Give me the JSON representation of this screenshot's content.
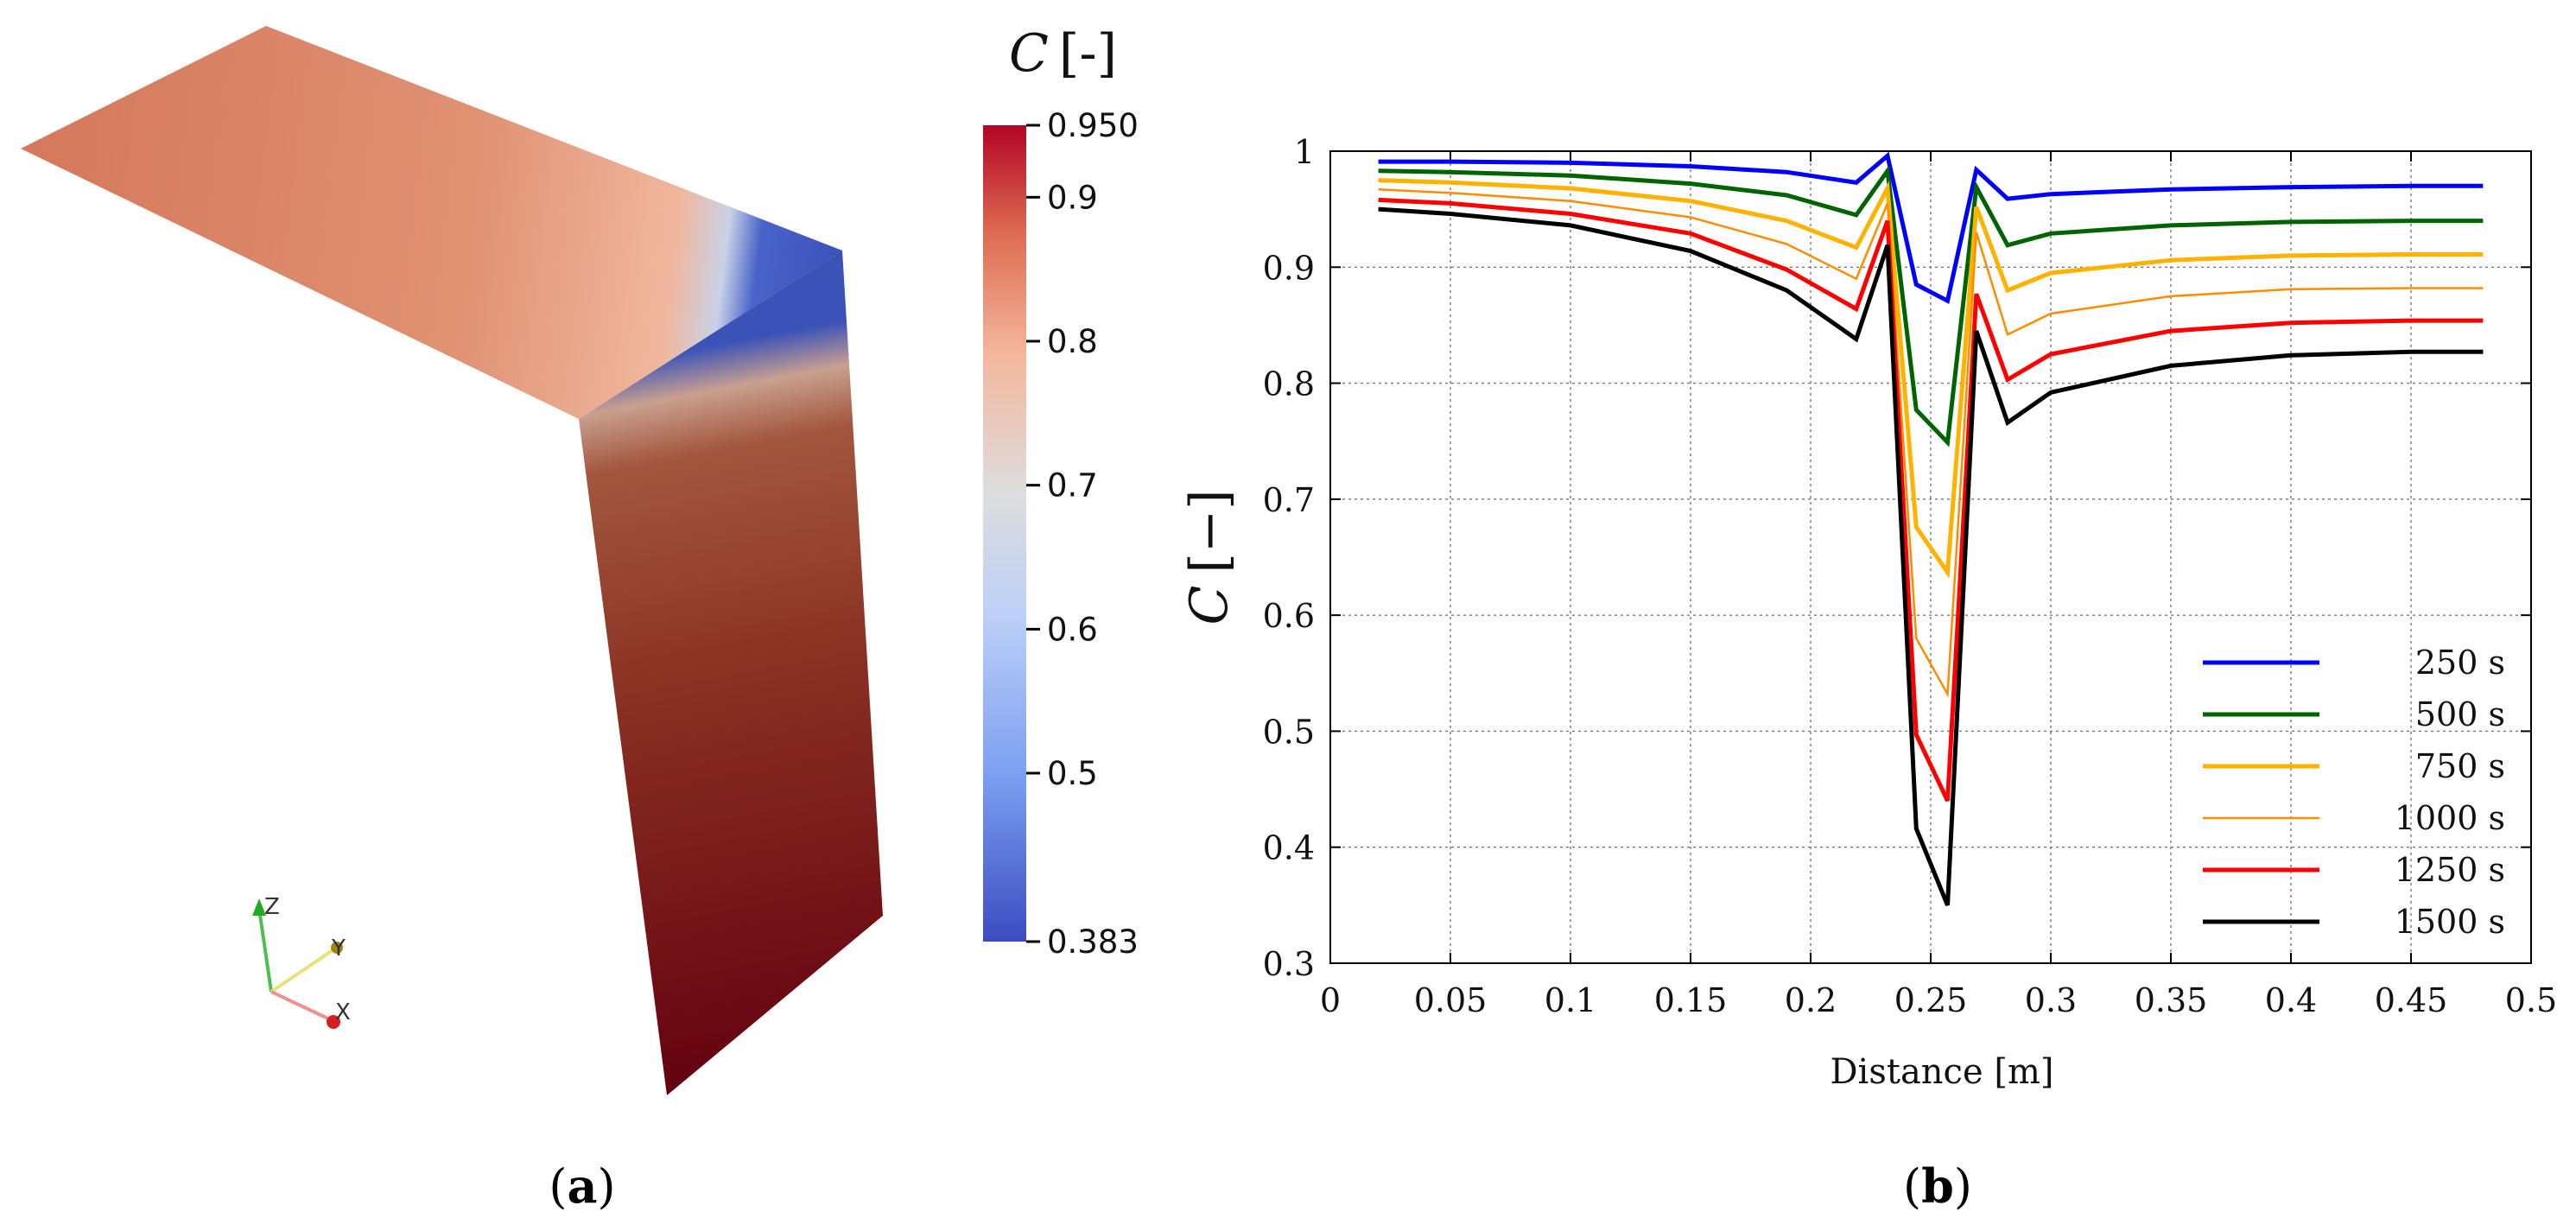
{
  "panel_a": {
    "label": "a",
    "colorbar": {
      "title": "C [-]",
      "title_var": "C",
      "title_unit": "[-]",
      "min": 0.383,
      "max": 0.95,
      "ticks": [
        "0.950",
        "0.9",
        "0.8",
        "0.7",
        "0.6",
        "0.5",
        "0.383"
      ],
      "tick_values": [
        0.95,
        0.9,
        0.8,
        0.7,
        0.6,
        0.5,
        0.383
      ],
      "colors": {
        "low": "#3b4cc0",
        "mid": "#dddddd",
        "high": "#b40426"
      }
    },
    "axes_triad": {
      "z": "Z",
      "y": "Y",
      "x": "X"
    },
    "surface_colors": {
      "top": "#d77a5c",
      "band": "#4a63c9",
      "wall_top": "#a0523d",
      "wall_bottom": "#6b0012"
    }
  },
  "panel_b": {
    "label": "b"
  },
  "chart_data": {
    "type": "line",
    "xlabel": "Distance [m]",
    "ylabel": "C [−]",
    "ylabel_var": "C",
    "ylabel_unit": "[−]",
    "xlim": [
      0,
      0.5
    ],
    "ylim": [
      0.3,
      1.0
    ],
    "x_ticks": [
      0,
      0.05,
      0.1,
      0.15,
      0.2,
      0.25,
      0.3,
      0.35,
      0.4,
      0.45,
      0.5
    ],
    "x_tick_labels": [
      "0",
      "0.05",
      "0.1",
      "0.15",
      "0.2",
      "0.25",
      "0.3",
      "0.35",
      "0.4",
      "0.45",
      "0.5"
    ],
    "y_ticks": [
      0.3,
      0.4,
      0.5,
      0.6,
      0.7,
      0.8,
      0.9,
      1.0
    ],
    "y_tick_labels": [
      "0.3",
      "0.4",
      "0.5",
      "0.6",
      "0.7",
      "0.8",
      "0.9",
      "1"
    ],
    "grid": true,
    "legend_position": "bottom-right",
    "x": [
      0.02,
      0.05,
      0.1,
      0.15,
      0.19,
      0.219,
      0.232,
      0.244,
      0.257,
      0.269,
      0.282,
      0.3,
      0.35,
      0.4,
      0.45,
      0.48
    ],
    "series": [
      {
        "name": "250 s",
        "color": "#0000ff",
        "width": 5,
        "values": [
          0.991,
          0.991,
          0.99,
          0.987,
          0.982,
          0.973,
          0.996,
          0.885,
          0.871,
          0.984,
          0.959,
          0.963,
          0.967,
          0.969,
          0.97,
          0.97
        ]
      },
      {
        "name": "500 s",
        "color": "#006400",
        "width": 5,
        "values": [
          0.983,
          0.982,
          0.979,
          0.972,
          0.962,
          0.945,
          0.983,
          0.777,
          0.749,
          0.969,
          0.919,
          0.929,
          0.936,
          0.939,
          0.94,
          0.94
        ]
      },
      {
        "name": "750 s",
        "color": "#ffb300",
        "width": 5,
        "values": [
          0.975,
          0.973,
          0.968,
          0.957,
          0.94,
          0.917,
          0.968,
          0.676,
          0.637,
          0.952,
          0.88,
          0.895,
          0.906,
          0.91,
          0.911,
          0.911
        ]
      },
      {
        "name": "1000 s",
        "color": "#ff8c00",
        "width": 2.5,
        "values": [
          0.967,
          0.964,
          0.957,
          0.943,
          0.92,
          0.89,
          0.955,
          0.58,
          0.532,
          0.93,
          0.842,
          0.86,
          0.875,
          0.881,
          0.882,
          0.882
        ]
      },
      {
        "name": "1250 s",
        "color": "#ff0000",
        "width": 5,
        "values": [
          0.958,
          0.955,
          0.946,
          0.929,
          0.898,
          0.864,
          0.94,
          0.497,
          0.44,
          0.877,
          0.803,
          0.825,
          0.845,
          0.852,
          0.854,
          0.854
        ]
      },
      {
        "name": "1500 s",
        "color": "#000000",
        "width": 5,
        "values": [
          0.95,
          0.946,
          0.936,
          0.914,
          0.88,
          0.838,
          0.919,
          0.416,
          0.35,
          0.845,
          0.766,
          0.792,
          0.815,
          0.824,
          0.827,
          0.827
        ]
      }
    ]
  }
}
